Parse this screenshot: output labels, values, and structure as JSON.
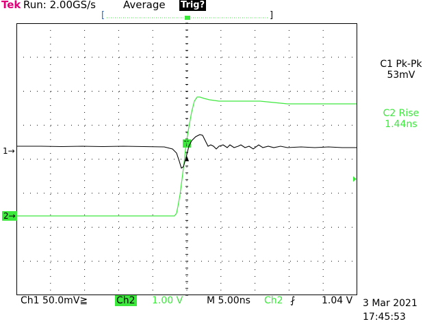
{
  "header": {
    "brand": "Tek",
    "run_status": "Run: 2.00GS/s",
    "acquire_mode": "Average",
    "trigger_status": "Trig?",
    "record_bar_left": "[",
    "record_bar_right": "]"
  },
  "colors": {
    "brand": "#e0007a",
    "ch1": "#000000",
    "ch2": "#3ce83c",
    "grid": "#000000",
    "record_bar": "#1f6bd0"
  },
  "measurements": [
    {
      "label": "C1 Pk-Pk",
      "value": "53mV"
    },
    {
      "label": "C2 Rise",
      "value": "1.44ns"
    }
  ],
  "channels": {
    "ch1_marker": "1→",
    "ch2_marker": "2→",
    "trigger_marker": "T"
  },
  "footer": {
    "ch1": "Ch1  50.0mV≧",
    "ch2_tag": "Ch2",
    "ch2_scale": "1.00 V",
    "timebase": "M 5.00ns",
    "trigger_source": "Ch2",
    "trigger_slope": "⨏",
    "trigger_level": "1.04 V",
    "date": "3 Mar 2021",
    "time": "17:45:53"
  }
}
